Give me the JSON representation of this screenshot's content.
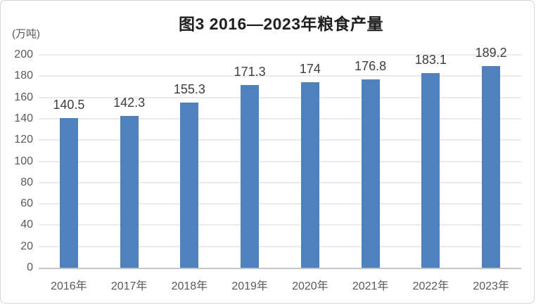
{
  "chart": {
    "title": "图3 2016—2023年粮食产量",
    "unit_label": "(万吨)",
    "colors": {
      "bar": "#4f81bd",
      "gridline": "#eaeaea",
      "axis_line": "#c6c6c6",
      "tick_text": "#595959",
      "value_label_text": "#3d3d3d",
      "title_text": "#1f1f1f",
      "frame_border": "#d6d6d6"
    }
  },
  "chart_data": {
    "type": "bar",
    "title": "图3 2016—2023年粮食产量",
    "xlabel": "",
    "ylabel": "(万吨)",
    "categories": [
      "2016年",
      "2017年",
      "2018年",
      "2019年",
      "2020年",
      "2021年",
      "2022年",
      "2023年"
    ],
    "values": [
      140.5,
      142.3,
      155.3,
      171.3,
      174,
      176.8,
      183.1,
      189.2
    ],
    "value_labels": [
      "140.5",
      "142.3",
      "155.3",
      "171.3",
      "174",
      "176.8",
      "183.1",
      "189.2"
    ],
    "ylim": [
      0,
      200
    ],
    "yticks": [
      0,
      20,
      40,
      60,
      80,
      100,
      120,
      140,
      160,
      180,
      200
    ],
    "grid": true,
    "legend": false,
    "bar_color": "#4f81bd"
  }
}
